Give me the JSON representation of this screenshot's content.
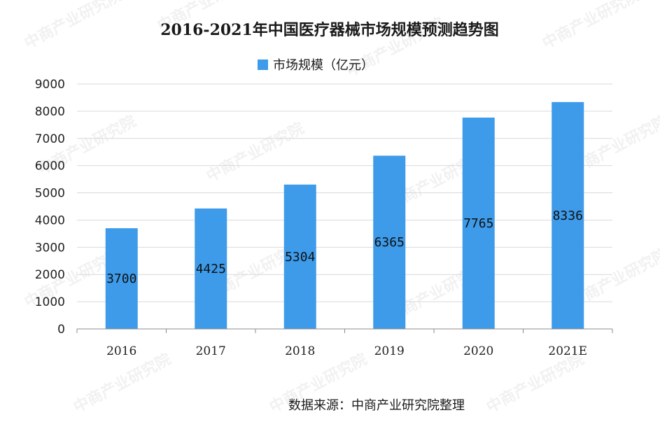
{
  "colors": {
    "bar": "#3d9bea",
    "grid": "#d9d9d9",
    "axis": "#8c8c8c",
    "text": "#1a1a1a"
  },
  "watermark": "中商产业研究院",
  "source": "数据来源：中商产业研究院整理",
  "chart_data": {
    "type": "bar",
    "title": "2016-2021年中国医疗器械市场规模预测趋势图",
    "categories": [
      "2016",
      "2017",
      "2018",
      "2019",
      "2020",
      "2021E"
    ],
    "series": [
      {
        "name": "市场规模（亿元）",
        "values": [
          3700,
          4425,
          5304,
          6365,
          7765,
          8336
        ]
      }
    ],
    "ylim": [
      0,
      9000
    ],
    "yticks": [
      0,
      1000,
      2000,
      3000,
      4000,
      5000,
      6000,
      7000,
      8000,
      9000
    ],
    "grid": true,
    "legend": "top-center",
    "data_labels": true
  }
}
